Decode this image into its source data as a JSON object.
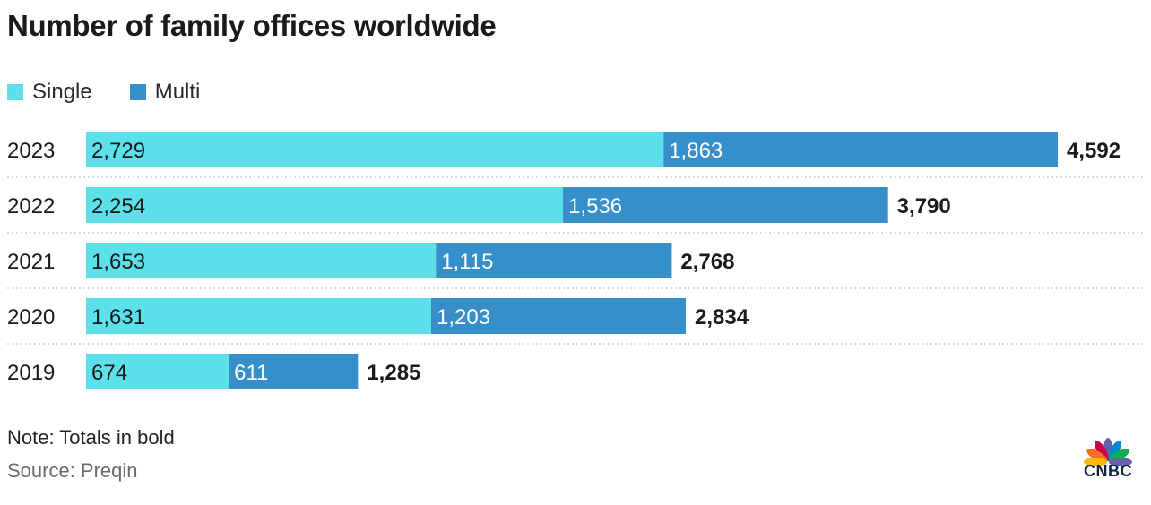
{
  "chart_data": {
    "type": "bar",
    "orientation": "horizontal",
    "stacked": true,
    "title": "Number of family offices worldwide",
    "categories": [
      "2023",
      "2022",
      "2021",
      "2020",
      "2019"
    ],
    "series": [
      {
        "name": "Single",
        "color": "#5ce1eb",
        "values": [
          2729,
          2254,
          1653,
          1631,
          674
        ]
      },
      {
        "name": "Multi",
        "color": "#378fca",
        "values": [
          1863,
          1536,
          1115,
          1203,
          611
        ]
      }
    ],
    "data_labels": {
      "Single": [
        "2,729",
        "2,254",
        "1,653",
        "1,631",
        "674"
      ],
      "Multi": [
        "1,863",
        "1,536",
        "1,115",
        "1,203",
        "611"
      ]
    },
    "totals": [
      4592,
      3790,
      2768,
      2834,
      1285
    ],
    "total_labels": [
      "4,592",
      "3,790",
      "2,768",
      "2,834",
      "1,285"
    ],
    "xlabel": "",
    "ylabel": "",
    "xlim": [
      0,
      4592
    ],
    "grid": false,
    "legend_position": "top-left"
  },
  "legend": {
    "single": "Single",
    "multi": "Multi"
  },
  "note": "Note: Totals in bold",
  "source": "Source: Preqin",
  "logo": {
    "text": "CNBC",
    "icon": "peacock-icon"
  }
}
